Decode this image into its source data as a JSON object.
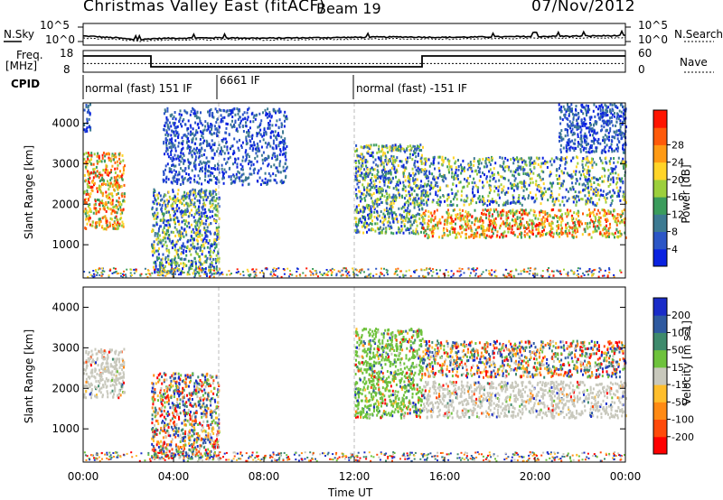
{
  "header": {
    "title": "Christmas Valley East (fitACF)",
    "beam": "Beam 19",
    "date": "07/Nov/2012"
  },
  "noise_panel": {
    "left_label": "N.Sky",
    "right_label": "N.Search",
    "left_ticks": [
      "10^5",
      "10^0"
    ],
    "right_ticks": [
      "10^5",
      "10^0"
    ]
  },
  "freq_panel": {
    "left_label_1": "Freq.",
    "left_label_2": "[MHz]",
    "right_label": "Nave",
    "left_ticks": [
      "18",
      "8"
    ],
    "right_ticks": [
      "60",
      "0"
    ]
  },
  "cpid": {
    "label": "CPID",
    "segments": [
      {
        "name": "normal (fast) 151 IF",
        "start_hour": 0,
        "end_hour": 6
      },
      {
        "name": "6661 IF",
        "start_hour": 6,
        "end_hour": 12
      },
      {
        "name": "normal (fast) -151 IF",
        "start_hour": 12,
        "end_hour": 24
      }
    ]
  },
  "x_axis": {
    "label": "Time UT",
    "ticks": [
      "00:00",
      "04:00",
      "08:00",
      "12:00",
      "16:00",
      "20:00",
      "00:00"
    ],
    "tick_hours": [
      0,
      4,
      8,
      12,
      16,
      20,
      24
    ]
  },
  "y_axis": {
    "label": "Slant Range [km]",
    "ticks": [
      "1000",
      "2000",
      "3000",
      "4000"
    ],
    "tick_values": [
      1000,
      2000,
      3000,
      4000
    ],
    "ylim": [
      180,
      4500
    ]
  },
  "power_colorbar": {
    "label": "Power [dB]",
    "ticks": [
      "4",
      "8",
      "12",
      "16",
      "20",
      "24",
      "28"
    ],
    "colors": [
      "#0a22e0",
      "#2c56c6",
      "#3d7a92",
      "#3b9c5c",
      "#9ccf3c",
      "#ffd428",
      "#ff9a14",
      "#ff5a0a",
      "#ff1400"
    ]
  },
  "velocity_colorbar": {
    "label": "Velocity [m s-1]",
    "ticks": [
      "200",
      "100",
      "50",
      "15",
      "-15",
      "-50",
      "-100",
      "-200"
    ],
    "colors": [
      "#1a2cc8",
      "#2f5aa0",
      "#3e8a6c",
      "#6ec23c",
      "#c8c8bc",
      "#ffbe2c",
      "#ff8a14",
      "#ff4a0a",
      "#ff0000"
    ]
  },
  "chart_data": [
    {
      "type": "line",
      "title": "Noise (N.Sky / N.Search)",
      "x": [
        0,
        0.5,
        1,
        1.5,
        2,
        2.5,
        3,
        4,
        6,
        8,
        10,
        12,
        14,
        16,
        18,
        20,
        22,
        24
      ],
      "series": [
        {
          "values": [
            2.1,
            2.0,
            1.8,
            1.7,
            1.4,
            1.2,
            1.5,
            1.6,
            1.7,
            1.6,
            1.7,
            1.8,
            1.9,
            1.8,
            1.9,
            2.0,
            2.1,
            2.2
          ]
        },
        {
          "values": [
            1.6,
            1.5,
            1.4,
            1.3,
            1.1,
            0.9,
            1.1,
            1.2,
            1.3,
            1.2,
            1.3,
            1.4,
            1.5,
            1.4,
            1.5,
            1.6,
            1.7,
            1.7
          ]
        }
      ]
    },
    {
      "type": "line",
      "title": "Frequency / Nave",
      "x": [
        0,
        3,
        3,
        15,
        15,
        24
      ],
      "series": [
        {
          "values": [
            15.5,
            15.5,
            10.5,
            10.5,
            15.5,
            15.5
          ]
        },
        {
          "values": [
            12,
            12,
            12,
            12,
            12,
            12
          ]
        }
      ]
    },
    {
      "type": "heatmap",
      "title": "Power",
      "xlabel": "Time UT",
      "ylabel": "Slant Range [km]",
      "xlim": [
        0,
        24
      ],
      "ylim": [
        180,
        4500
      ],
      "features": [
        {
          "t0": 0.0,
          "t1": 1.8,
          "r0": 1400,
          "r1": 3300,
          "level": "strong"
        },
        {
          "t0": 0.0,
          "t1": 0.3,
          "r0": 3800,
          "r1": 4500,
          "level": "weak"
        },
        {
          "t0": 3.0,
          "t1": 6.0,
          "r0": 300,
          "r1": 2400,
          "level": "medium"
        },
        {
          "t0": 3.5,
          "t1": 9.0,
          "r0": 2500,
          "r1": 4400,
          "level": "weak"
        },
        {
          "t0": 12.0,
          "t1": 15.0,
          "r0": 1300,
          "r1": 3500,
          "level": "medium"
        },
        {
          "t0": 15.0,
          "t1": 24.0,
          "r0": 1200,
          "r1": 1900,
          "level": "strong"
        },
        {
          "t0": 15.0,
          "t1": 24.0,
          "r0": 2000,
          "r1": 3200,
          "level": "medium"
        },
        {
          "t0": 21.0,
          "t1": 24.0,
          "r0": 3300,
          "r1": 4500,
          "level": "weak"
        }
      ]
    },
    {
      "type": "heatmap",
      "title": "Velocity",
      "xlabel": "Time UT",
      "ylabel": "Slant Range [km]",
      "xlim": [
        0,
        24
      ],
      "ylim": [
        180,
        4500
      ],
      "features": [
        {
          "t0": 0.0,
          "t1": 1.8,
          "r0": 1800,
          "r1": 3000,
          "level": "ground"
        },
        {
          "t0": 3.0,
          "t1": 6.0,
          "r0": 300,
          "r1": 2400,
          "level": "mixed"
        },
        {
          "t0": 12.0,
          "t1": 15.0,
          "r0": 1300,
          "r1": 3500,
          "level": "positive"
        },
        {
          "t0": 15.0,
          "t1": 24.0,
          "r0": 1300,
          "r1": 2200,
          "level": "ground"
        },
        {
          "t0": 15.0,
          "t1": 24.0,
          "r0": 2300,
          "r1": 3200,
          "level": "mixed"
        }
      ]
    }
  ]
}
